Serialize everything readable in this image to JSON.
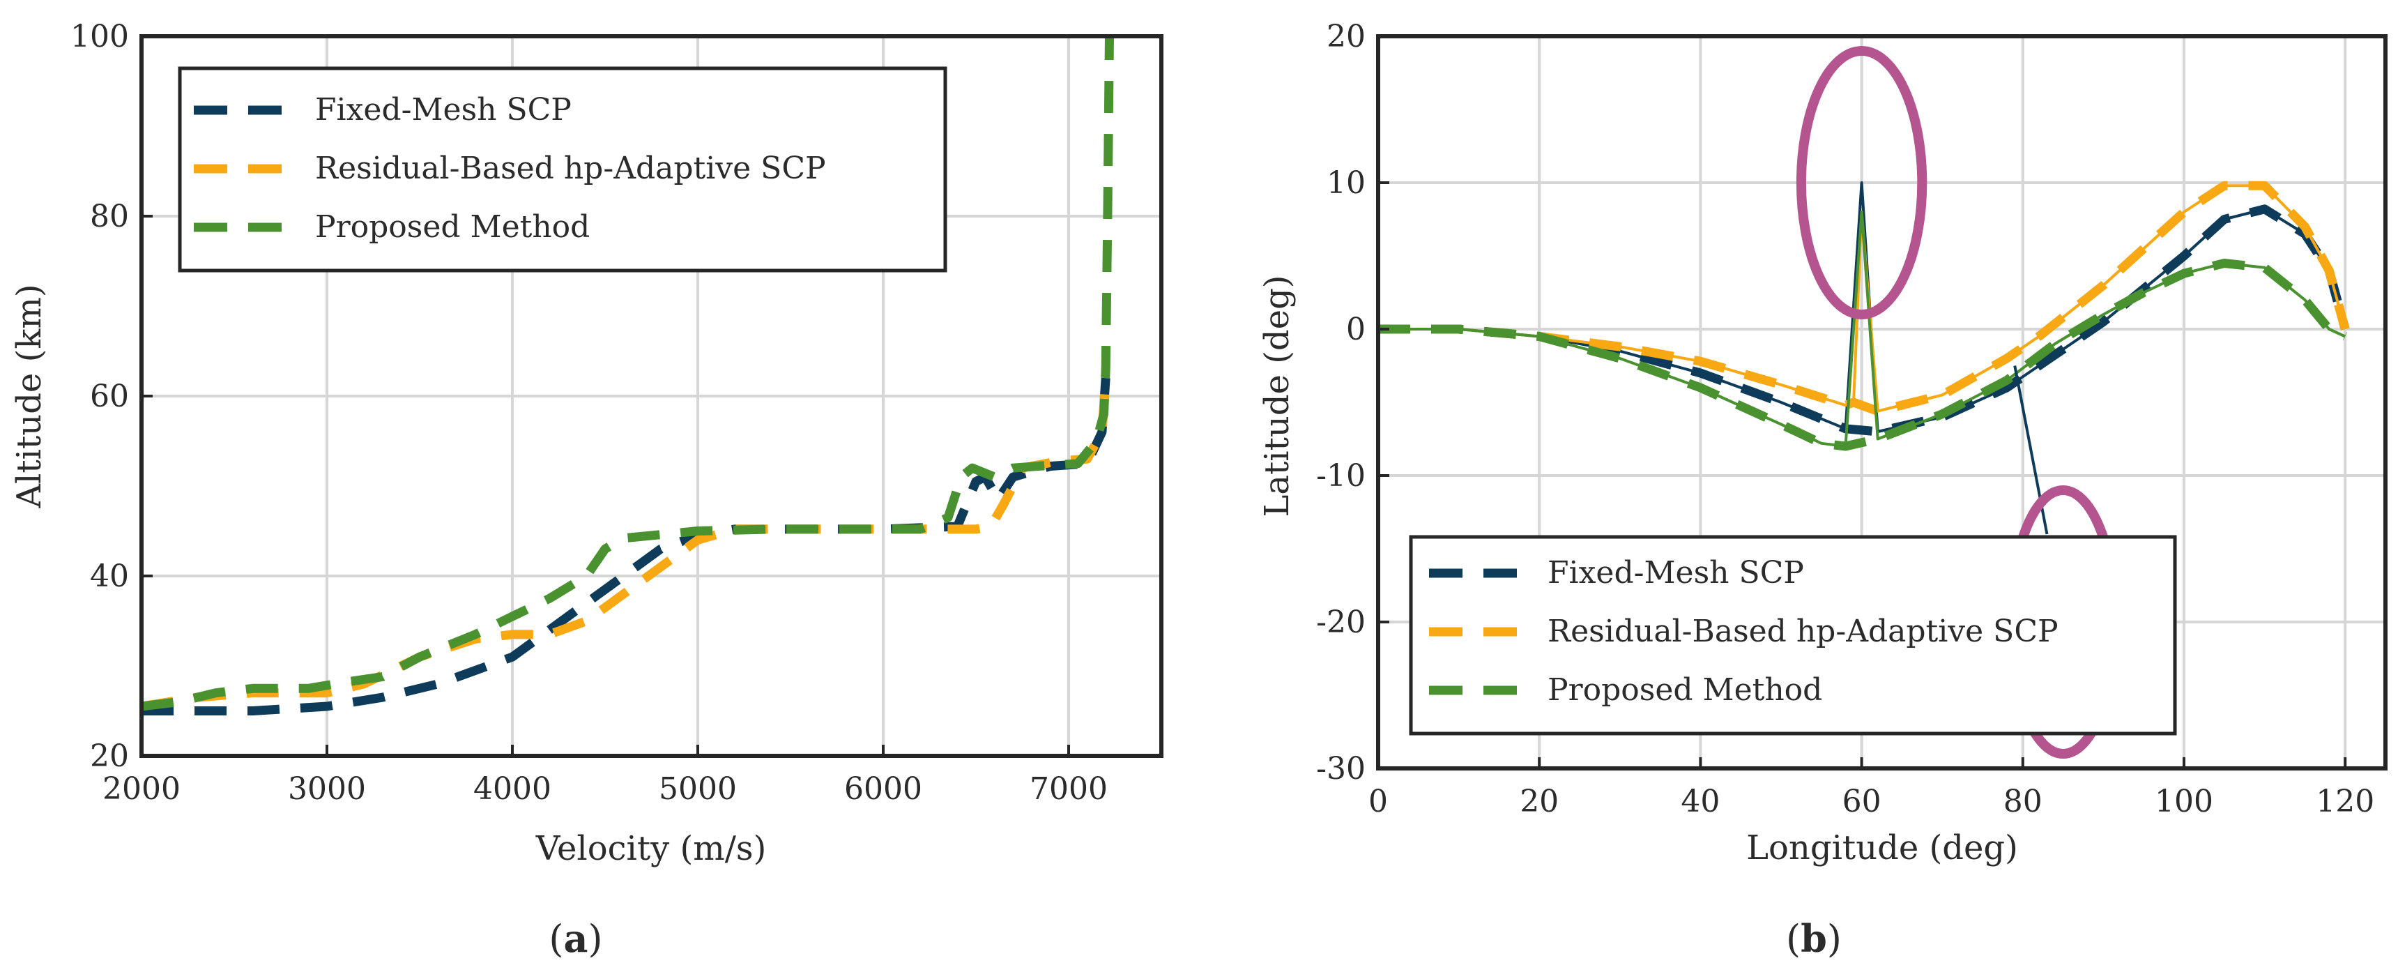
{
  "colors": {
    "fixed": "#0d3b59",
    "residual": "#f7a812",
    "proposed": "#4a9130",
    "ellipse": "#b5558f",
    "grid": "#d6d6d6",
    "axis": "#262626"
  },
  "chart_data": [
    {
      "type": "line",
      "caption": "(a)",
      "caption_parts": {
        "open": "(",
        "letter": "a",
        "close": ")"
      },
      "xlabel": "Velocity (m/s)",
      "ylabel": "Altitude (km)",
      "xlim": [
        2000,
        7500
      ],
      "ylim": [
        20,
        100
      ],
      "xticks": [
        2000,
        3000,
        4000,
        5000,
        6000,
        7000
      ],
      "yticks": [
        20,
        40,
        60,
        80,
        100
      ],
      "grid": true,
      "legend_position": "top-left",
      "series": [
        {
          "name": "Fixed-Mesh SCP",
          "key": "fixed",
          "points": [
            [
              2000,
              25
            ],
            [
              2600,
              25
            ],
            [
              3000,
              25.5
            ],
            [
              3300,
              26.5
            ],
            [
              3600,
              28
            ],
            [
              3800,
              29.5
            ],
            [
              4000,
              31
            ],
            [
              4200,
              34
            ],
            [
              4400,
              37
            ],
            [
              4600,
              40
            ],
            [
              4800,
              43
            ],
            [
              5000,
              44.5
            ],
            [
              5200,
              45.2
            ],
            [
              6000,
              45.2
            ],
            [
              6400,
              45.5
            ],
            [
              6500,
              50.5
            ],
            [
              6550,
              51
            ],
            [
              6620,
              48.5
            ],
            [
              6700,
              51
            ],
            [
              6900,
              52.2
            ],
            [
              7100,
              52.5
            ],
            [
              7180,
              56
            ],
            [
              7200,
              62
            ]
          ]
        },
        {
          "name": "Residual-Based hp-Adaptive SCP",
          "key": "residual",
          "points": [
            [
              2000,
              25.5
            ],
            [
              2300,
              26.5
            ],
            [
              2600,
              27
            ],
            [
              3000,
              27
            ],
            [
              3200,
              28
            ],
            [
              3500,
              31
            ],
            [
              3800,
              33
            ],
            [
              4000,
              33.5
            ],
            [
              4200,
              33.5
            ],
            [
              4400,
              35
            ],
            [
              4600,
              38
            ],
            [
              4800,
              41
            ],
            [
              5000,
              44
            ],
            [
              5200,
              45.2
            ],
            [
              6500,
              45.2
            ],
            [
              6580,
              45.5
            ],
            [
              6650,
              48
            ],
            [
              6750,
              52
            ],
            [
              6950,
              52.8
            ],
            [
              7100,
              53
            ],
            [
              7180,
              56
            ],
            [
              7200,
              62
            ]
          ]
        },
        {
          "name": "Proposed Method",
          "key": "proposed",
          "points": [
            [
              2000,
              25.5
            ],
            [
              2200,
              26
            ],
            [
              2400,
              27
            ],
            [
              2600,
              27.5
            ],
            [
              2900,
              27.5
            ],
            [
              3100,
              28.2
            ],
            [
              3300,
              28.8
            ],
            [
              3500,
              31
            ],
            [
              3800,
              33.5
            ],
            [
              4000,
              35.5
            ],
            [
              4200,
              37.5
            ],
            [
              4400,
              40
            ],
            [
              4500,
              43
            ],
            [
              4600,
              44.2
            ],
            [
              4800,
              44.6
            ],
            [
              5000,
              45
            ],
            [
              5400,
              45.2
            ],
            [
              6200,
              45.2
            ],
            [
              6350,
              46.5
            ],
            [
              6420,
              51
            ],
            [
              6480,
              52
            ],
            [
              6600,
              51
            ],
            [
              6700,
              52
            ],
            [
              6900,
              52.3
            ],
            [
              7050,
              52.5
            ],
            [
              7150,
              55
            ],
            [
              7190,
              58
            ],
            [
              7200,
              63
            ],
            [
              7210,
              80
            ],
            [
              7220,
              100
            ]
          ]
        }
      ]
    },
    {
      "type": "line",
      "caption": "(b)",
      "caption_parts": {
        "open": "(",
        "letter": "b",
        "close": ")"
      },
      "xlabel": "Longitude (deg)",
      "ylabel": "Latitude (deg)",
      "xlim": [
        0,
        125
      ],
      "ylim": [
        -30,
        20
      ],
      "xticks": [
        0,
        20,
        40,
        60,
        80,
        100,
        120
      ],
      "yticks": [
        -30,
        -20,
        -10,
        0,
        10,
        20
      ],
      "grid": true,
      "legend_position": "bottom-left",
      "series": [
        {
          "name": "Fixed-Mesh SCP",
          "key": "fixed",
          "points": [
            [
              0,
              0
            ],
            [
              10,
              0
            ],
            [
              20,
              -0.5
            ],
            [
              30,
              -1.5
            ],
            [
              40,
              -3
            ],
            [
              50,
              -5
            ],
            [
              58,
              -6.8
            ],
            [
              60,
              10
            ],
            [
              62,
              -7
            ],
            [
              70,
              -6
            ],
            [
              78,
              -4
            ],
            [
              90,
              0.5
            ],
            [
              100,
              5
            ],
            [
              105,
              7.5
            ],
            [
              110,
              8.2
            ],
            [
              115,
              6.5
            ],
            [
              118,
              4
            ],
            [
              120,
              0
            ]
          ]
        },
        {
          "name": "Residual-Based hp-Adaptive SCP",
          "key": "residual",
          "points": [
            [
              0,
              0
            ],
            [
              10,
              0
            ],
            [
              20,
              -0.5
            ],
            [
              30,
              -1.2
            ],
            [
              40,
              -2.2
            ],
            [
              50,
              -3.8
            ],
            [
              58,
              -5.2
            ],
            [
              59,
              -5
            ],
            [
              60,
              8
            ],
            [
              62,
              -5.6
            ],
            [
              70,
              -4.5
            ],
            [
              78,
              -2
            ],
            [
              82,
              -0.5
            ],
            [
              90,
              3
            ],
            [
              100,
              8
            ],
            [
              105,
              9.8
            ],
            [
              110,
              9.8
            ],
            [
              115,
              7
            ],
            [
              118,
              4
            ],
            [
              120,
              0
            ]
          ]
        },
        {
          "name": "Proposed Method",
          "key": "proposed",
          "points": [
            [
              0,
              0
            ],
            [
              10,
              0
            ],
            [
              20,
              -0.5
            ],
            [
              30,
              -2
            ],
            [
              40,
              -4
            ],
            [
              50,
              -6.5
            ],
            [
              55,
              -7.8
            ],
            [
              58,
              -8
            ],
            [
              60,
              8
            ],
            [
              62,
              -7.5
            ],
            [
              70,
              -5.8
            ],
            [
              78,
              -3.5
            ],
            [
              84,
              -1
            ],
            [
              90,
              1
            ],
            [
              95,
              2.5
            ],
            [
              100,
              3.8
            ],
            [
              105,
              4.5
            ],
            [
              110,
              4.2
            ],
            [
              115,
              2
            ],
            [
              118,
              0
            ],
            [
              120,
              -0.5
            ]
          ]
        }
      ],
      "spikes": [
        {
          "key": "fixed",
          "from": [
            83,
            -14
          ],
          "to": [
            79,
            -2.5
          ]
        }
      ],
      "annotations": [
        {
          "shape": "ellipse",
          "center": [
            60,
            10
          ],
          "radii": [
            7.5,
            9
          ]
        },
        {
          "shape": "ellipse",
          "center": [
            85,
            -20
          ],
          "radii": [
            6.5,
            9
          ]
        }
      ]
    }
  ]
}
